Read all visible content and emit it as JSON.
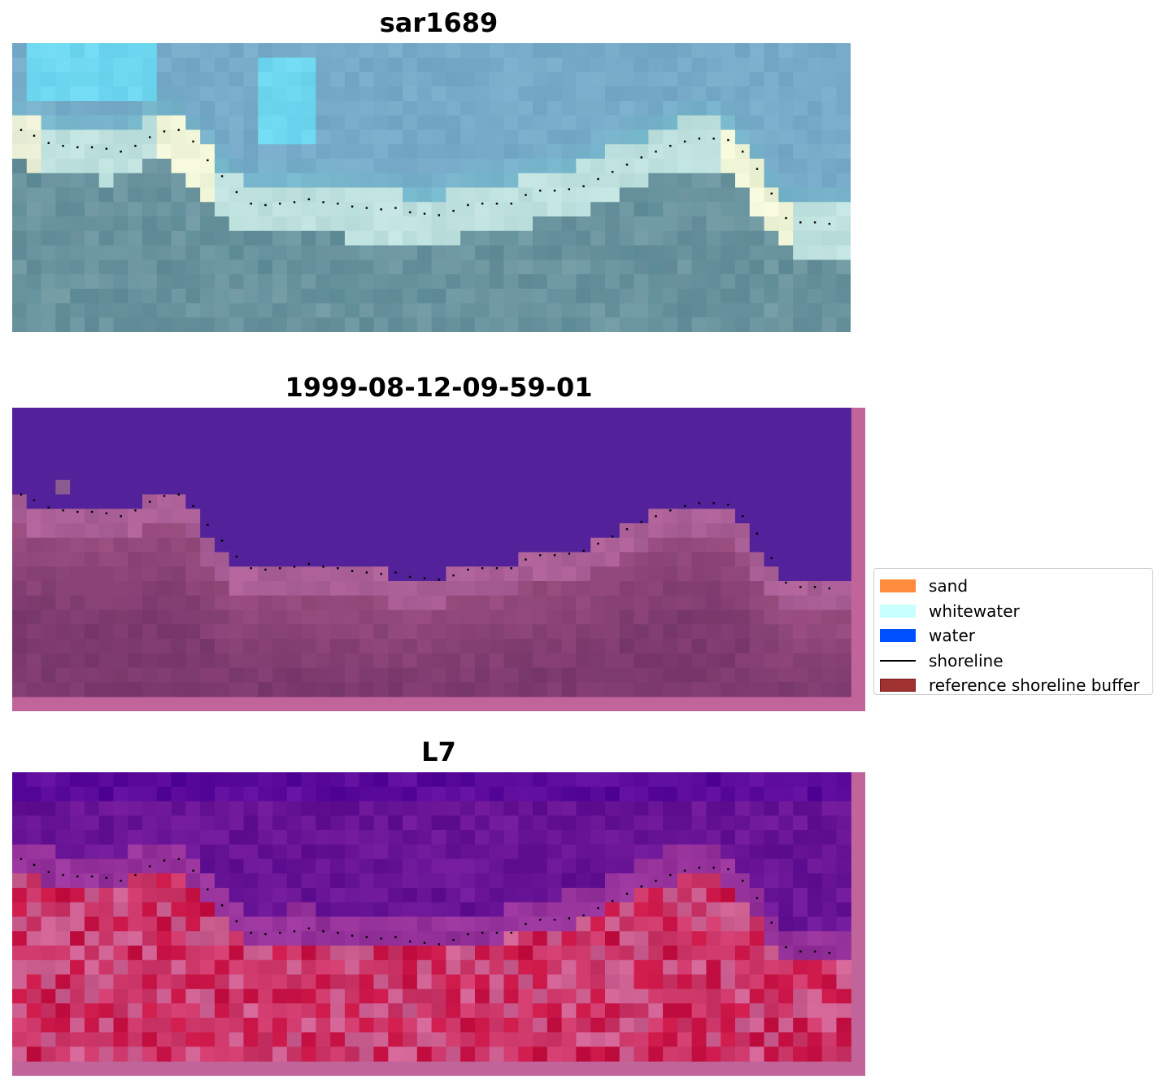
{
  "chart_data": [
    {
      "type": "heatmap",
      "title": "sar1689",
      "content": "true-color satellite image",
      "grid_cols": 58,
      "grid_rows": 20
    },
    {
      "type": "heatmap",
      "title": "1999-08-12-09-59-01",
      "content": "classified image overlay",
      "grid_cols": 58,
      "grid_rows": 20
    },
    {
      "type": "heatmap",
      "title": "L7",
      "content": "index image overlay",
      "grid_cols": 58,
      "grid_rows": 20
    }
  ],
  "shoreline": {
    "x": [
      0.1,
      1,
      2,
      3,
      4,
      5,
      6,
      7,
      8,
      9,
      10,
      11,
      12,
      13,
      14,
      15,
      16,
      17,
      18,
      19,
      20,
      21,
      22,
      23,
      24,
      25,
      26,
      27,
      28,
      29,
      30,
      31,
      32,
      33,
      34,
      35,
      36,
      37,
      38,
      39,
      40,
      41,
      42,
      43,
      44,
      45,
      46,
      47,
      48,
      49,
      50,
      51,
      52,
      53,
      54,
      55,
      56
    ],
    "y": [
      6.0,
      6.4,
      6.9,
      7.1,
      7.2,
      7.2,
      7.3,
      7.5,
      7.1,
      6.5,
      6.1,
      6.0,
      6.8,
      8.1,
      9.2,
      10.3,
      11.1,
      11.2,
      11.1,
      11.0,
      10.8,
      11.0,
      11.1,
      11.3,
      11.4,
      11.5,
      11.4,
      11.7,
      11.8,
      11.9,
      11.6,
      11.2,
      11.1,
      11.1,
      11.1,
      10.5,
      10.2,
      10.2,
      10.1,
      9.9,
      9.4,
      8.9,
      8.4,
      7.9,
      7.5,
      7.1,
      6.8,
      6.6,
      6.6,
      6.7,
      7.5,
      8.7,
      10.4,
      12.1,
      12.4,
      12.4,
      12.5
    ],
    "color": "#000000"
  },
  "legend": [
    {
      "label": "sand",
      "color": "#ff8c3c",
      "kind": "patch"
    },
    {
      "label": "whitewater",
      "color": "#c8ffff",
      "kind": "patch"
    },
    {
      "label": "water",
      "color": "#0050ff",
      "kind": "patch"
    },
    {
      "label": "shoreline",
      "color": "#000000",
      "kind": "line"
    },
    {
      "label": "reference shoreline buffer",
      "color": "#a03232",
      "kind": "patch"
    }
  ]
}
